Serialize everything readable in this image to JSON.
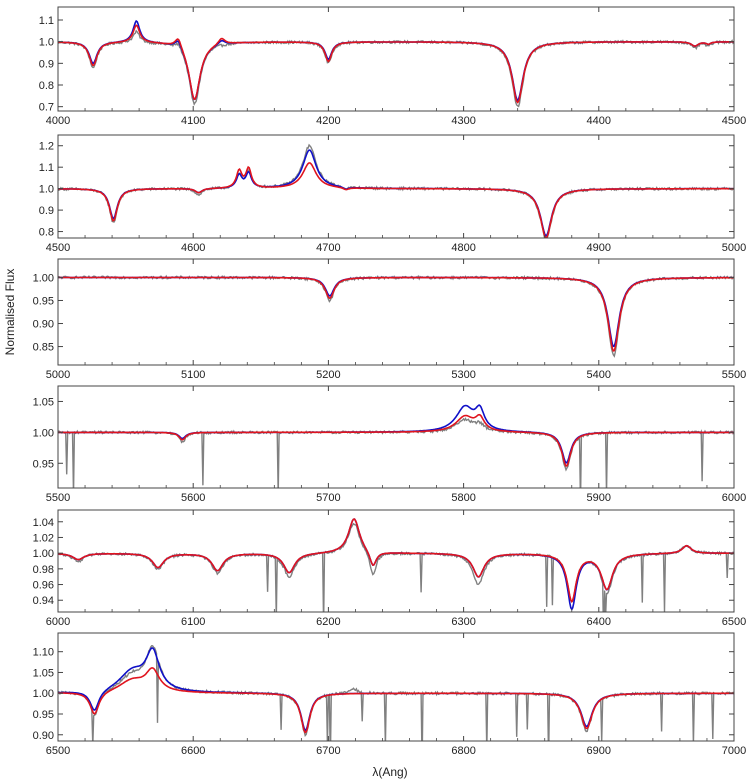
{
  "chart_data": {
    "type": "line",
    "ylabel": "Normalised Flux",
    "xlabel": "λ(Ang)",
    "colors": {
      "observed": "#808080",
      "model_blue": "#1010c8",
      "model_red": "#e0141e"
    },
    "series_roles": [
      "observed",
      "model_blue",
      "model_red"
    ],
    "panels": [
      {
        "xlim": [
          4000,
          4500
        ],
        "ylim": [
          0.68,
          1.16
        ],
        "xticks": [
          4000,
          4100,
          4200,
          4300,
          4400,
          4500
        ],
        "yticks": [
          0.7,
          0.8,
          0.9,
          1.0,
          1.1
        ],
        "ytick_labels": [
          "0.7",
          "0.8",
          "0.9",
          "1.0",
          "1.1"
        ],
        "features": [
          {
            "center": 4026,
            "width": 3.5,
            "depth": [
              0.12,
              0.1,
              0.11
            ]
          },
          {
            "center": 4058,
            "width": 3,
            "depth": [
              -0.05,
              -0.1,
              -0.08
            ]
          },
          {
            "center": 4089,
            "width": 3,
            "depth": [
              -0.03,
              -0.04,
              -0.05
            ]
          },
          {
            "center": 4101,
            "width": 5,
            "depth": [
              0.29,
              0.27,
              0.27
            ]
          },
          {
            "center": 4121,
            "width": 3,
            "depth": [
              0.0,
              -0.02,
              -0.03
            ]
          },
          {
            "center": 4200,
            "width": 3,
            "depth": [
              0.1,
              0.08,
              0.09
            ]
          },
          {
            "center": 4340,
            "width": 5,
            "depth": [
              0.3,
              0.27,
              0.28
            ]
          },
          {
            "center": 4471,
            "width": 3,
            "depth": [
              0.03,
              0.02,
              0.02
            ]
          },
          {
            "center": 4481,
            "width": 2,
            "depth": [
              0.02,
              0.01,
              0.01
            ]
          }
        ]
      },
      {
        "xlim": [
          4500,
          5000
        ],
        "ylim": [
          0.77,
          1.25
        ],
        "xticks": [
          4500,
          4600,
          4700,
          4800,
          4900,
          5000
        ],
        "yticks": [
          0.8,
          0.9,
          1.0,
          1.1,
          1.2
        ],
        "ytick_labels": [
          "0.8",
          "0.9",
          "1.0",
          "1.1",
          "1.2"
        ],
        "features": [
          {
            "center": 4541,
            "width": 3.5,
            "depth": [
              0.16,
              0.14,
              0.15
            ]
          },
          {
            "center": 4604,
            "width": 3,
            "depth": [
              0.03,
              0.02,
              0.02
            ]
          },
          {
            "center": 4634,
            "width": 2.5,
            "depth": [
              -0.06,
              -0.06,
              -0.08
            ]
          },
          {
            "center": 4641,
            "width": 2.5,
            "depth": [
              -0.08,
              -0.07,
              -0.09
            ]
          },
          {
            "center": 4686,
            "width": 6,
            "depth": [
              -0.2,
              -0.18,
              -0.12
            ]
          },
          {
            "center": 4713,
            "width": 2.5,
            "depth": [
              0.01,
              0.01,
              0.01
            ]
          },
          {
            "center": 4861,
            "width": 5,
            "depth": [
              0.24,
              0.22,
              0.23
            ]
          }
        ]
      },
      {
        "xlim": [
          5000,
          5500
        ],
        "ylim": [
          0.81,
          1.04
        ],
        "xticks": [
          5000,
          5100,
          5200,
          5300,
          5400,
          5500
        ],
        "yticks": [
          0.85,
          0.9,
          0.95,
          1.0
        ],
        "ytick_labels": [
          "0.85",
          "0.90",
          "0.95",
          "1.00"
        ],
        "features": [
          {
            "center": 5201,
            "width": 4,
            "depth": [
              0.05,
              0.04,
              0.045
            ]
          },
          {
            "center": 5411,
            "width": 5,
            "depth": [
              0.17,
              0.15,
              0.16
            ]
          }
        ]
      },
      {
        "xlim": [
          5500,
          6000
        ],
        "ylim": [
          0.91,
          1.075
        ],
        "xticks": [
          5500,
          5600,
          5700,
          5800,
          5900,
          6000
        ],
        "yticks": [
          0.95,
          1.0,
          1.05
        ],
        "ytick_labels": [
          "0.95",
          "1.00",
          "1.05"
        ],
        "features": [
          {
            "center": 5592,
            "width": 3,
            "depth": [
              0.015,
              0.01,
              0.012
            ]
          },
          {
            "center": 5801,
            "width": 8,
            "depth": [
              -0.02,
              -0.04,
              -0.025
            ]
          },
          {
            "center": 5812,
            "width": 4,
            "depth": [
              -0.01,
              -0.03,
              -0.02
            ]
          },
          {
            "center": 5876,
            "width": 4,
            "depth": [
              0.06,
              0.05,
              0.055
            ]
          }
        ]
      },
      {
        "xlim": [
          6000,
          6500
        ],
        "ylim": [
          0.925,
          1.055
        ],
        "xticks": [
          6000,
          6100,
          6200,
          6300,
          6400,
          6500
        ],
        "yticks": [
          0.94,
          0.96,
          0.98,
          1.0,
          1.02,
          1.04
        ],
        "ytick_labels": [
          "0.94",
          "0.96",
          "0.98",
          "1.00",
          "1.02",
          "1.04"
        ],
        "features": [
          {
            "center": 6015,
            "width": 5,
            "depth": [
              0.01,
              0.008,
              0.008
            ]
          },
          {
            "center": 6074,
            "width": 5,
            "depth": [
              0.02,
              0.018,
              0.018
            ]
          },
          {
            "center": 6118,
            "width": 5,
            "depth": [
              0.025,
              0.022,
              0.022
            ]
          },
          {
            "center": 6171,
            "width": 5,
            "depth": [
              0.03,
              0.025,
              0.025
            ]
          },
          {
            "center": 6219,
            "width": 5,
            "depth": [
              -0.04,
              -0.045,
              -0.045
            ]
          },
          {
            "center": 6233,
            "width": 3,
            "depth": [
              0.03,
              0.02,
              0.02
            ]
          },
          {
            "center": 6311,
            "width": 5,
            "depth": [
              0.04,
              0.03,
              0.03
            ]
          },
          {
            "center": 6380,
            "width": 4,
            "depth": [
              0.06,
              0.07,
              0.06
            ]
          },
          {
            "center": 6406,
            "width": 5,
            "depth": [
              0.05,
              0.045,
              0.045
            ]
          },
          {
            "center": 6465,
            "width": 4,
            "depth": [
              -0.01,
              -0.01,
              -0.01
            ]
          }
        ]
      },
      {
        "xlim": [
          6500,
          7000
        ],
        "ylim": [
          0.885,
          1.145
        ],
        "xticks": [
          6500,
          6600,
          6700,
          6800,
          6900,
          7000
        ],
        "yticks": [
          0.9,
          0.95,
          1.0,
          1.05,
          1.1
        ],
        "ytick_labels": [
          "0.90",
          "0.95",
          "1.00",
          "1.05",
          "1.10"
        ],
        "features": [
          {
            "center": 6527,
            "width": 4,
            "depth": [
              0.06,
              0.05,
              0.055
            ]
          },
          {
            "center": 6555,
            "width": 12,
            "depth": [
              -0.04,
              -0.05,
              -0.03
            ]
          },
          {
            "center": 6570,
            "width": 6,
            "depth": [
              -0.1,
              -0.09,
              -0.05
            ]
          },
          {
            "center": 6683,
            "width": 4,
            "depth": [
              0.1,
              0.09,
              0.095
            ]
          },
          {
            "center": 6719,
            "width": 4,
            "depth": [
              -0.01,
              0.0,
              0.0
            ]
          },
          {
            "center": 6891,
            "width": 5,
            "depth": [
              0.09,
              0.08,
              0.085
            ]
          }
        ]
      }
    ]
  }
}
